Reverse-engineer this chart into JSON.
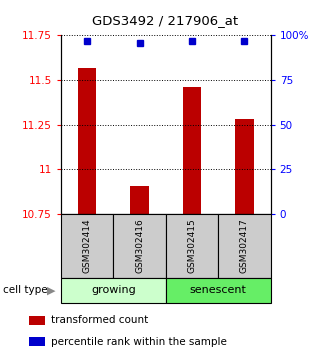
{
  "title": "GDS3492 / 217906_at",
  "samples": [
    "GSM302414",
    "GSM302416",
    "GSM302415",
    "GSM302417"
  ],
  "bar_values": [
    11.57,
    10.91,
    11.46,
    11.28
  ],
  "percentile_values": [
    97,
    96,
    97,
    97
  ],
  "bar_color": "#bb0000",
  "dot_color": "#0000cc",
  "ylim_left": [
    10.75,
    11.75
  ],
  "yticks_left": [
    10.75,
    11.0,
    11.25,
    11.5,
    11.75
  ],
  "ytick_labels_left": [
    "10.75",
    "11",
    "11.25",
    "11.5",
    "11.75"
  ],
  "ylim_right": [
    0,
    100
  ],
  "yticks_right": [
    0,
    25,
    50,
    75,
    100
  ],
  "ytick_labels_right": [
    "0",
    "25",
    "50",
    "75",
    "100%"
  ],
  "groups": [
    {
      "label": "growing",
      "indices": [
        0,
        1
      ],
      "color": "#ccffcc"
    },
    {
      "label": "senescent",
      "indices": [
        2,
        3
      ],
      "color": "#66ee66"
    }
  ],
  "cell_type_label": "cell type",
  "legend_items": [
    {
      "color": "#bb0000",
      "label": "transformed count"
    },
    {
      "color": "#0000cc",
      "label": "percentile rank within the sample"
    }
  ],
  "bar_width": 0.35,
  "group_box_color": "#cccccc",
  "background_color": "#ffffff"
}
